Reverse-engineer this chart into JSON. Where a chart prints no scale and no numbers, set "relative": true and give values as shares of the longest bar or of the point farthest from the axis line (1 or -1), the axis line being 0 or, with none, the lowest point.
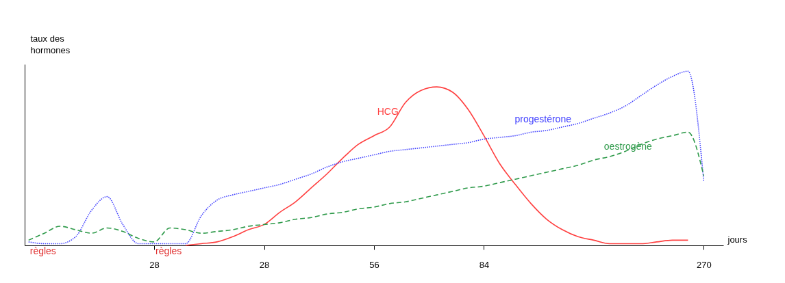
{
  "chart_data": {
    "type": "line",
    "relative": true,
    "xlabel": "jours",
    "ylabel": "taux des hormones",
    "categories": [
      null,
      null,
      null,
      null,
      null,
      null,
      null,
      null,
      "28",
      null,
      null,
      null,
      null,
      null,
      null,
      "28",
      null,
      null,
      null,
      null,
      null,
      null,
      "56",
      null,
      null,
      null,
      null,
      null,
      null,
      "84",
      null,
      null,
      null,
      null,
      null,
      null,
      null,
      null,
      null,
      null,
      null,
      null,
      null,
      "270",
      null
    ],
    "series": [
      {
        "name": "HCG",
        "color": "#ff4040",
        "line_style": "solid",
        "values": [
          null,
          null,
          null,
          null,
          null,
          null,
          null,
          null,
          null,
          null,
          0.0,
          0.01,
          0.02,
          0.05,
          0.09,
          0.12,
          0.19,
          0.25,
          0.33,
          0.41,
          0.5,
          0.58,
          0.63,
          0.68,
          0.82,
          0.89,
          0.91,
          0.88,
          0.78,
          0.63,
          0.47,
          0.35,
          0.24,
          0.15,
          0.09,
          0.05,
          0.03,
          0.01,
          0.01,
          0.01,
          0.02,
          0.03,
          0.03,
          null,
          null
        ]
      },
      {
        "name": "progestérone",
        "color": "#4040ff",
        "line_style": "dotted",
        "values": [
          0.02,
          0.01,
          0.01,
          0.05,
          0.2,
          0.28,
          0.12,
          0.01,
          0.01,
          0.01,
          0.01,
          0.17,
          0.26,
          0.29,
          0.31,
          0.33,
          0.35,
          0.38,
          0.41,
          0.45,
          0.48,
          0.5,
          0.52,
          0.54,
          0.55,
          0.56,
          0.57,
          0.58,
          0.59,
          0.61,
          0.62,
          0.63,
          0.65,
          0.66,
          0.68,
          0.7,
          0.73,
          0.76,
          0.8,
          0.86,
          0.92,
          0.97,
          1,
          0.37,
          null
        ]
      },
      {
        "name": "oestrogène",
        "color": "#2e9a4a",
        "line_style": "dashed",
        "values": [
          0.03,
          0.07,
          0.11,
          0.09,
          0.07,
          0.1,
          0.08,
          0.04,
          0.02,
          0.1,
          0.09,
          0.07,
          0.08,
          0.09,
          0.11,
          0.12,
          0.13,
          0.15,
          0.16,
          0.18,
          0.19,
          0.21,
          0.22,
          0.24,
          0.25,
          0.27,
          0.29,
          0.31,
          0.33,
          0.34,
          0.36,
          0.38,
          0.4,
          0.42,
          0.44,
          0.46,
          0.49,
          0.51,
          0.54,
          0.58,
          0.61,
          0.63,
          0.65,
          0.4,
          null
        ]
      }
    ],
    "annotations": [
      "règles",
      "règles"
    ]
  }
}
